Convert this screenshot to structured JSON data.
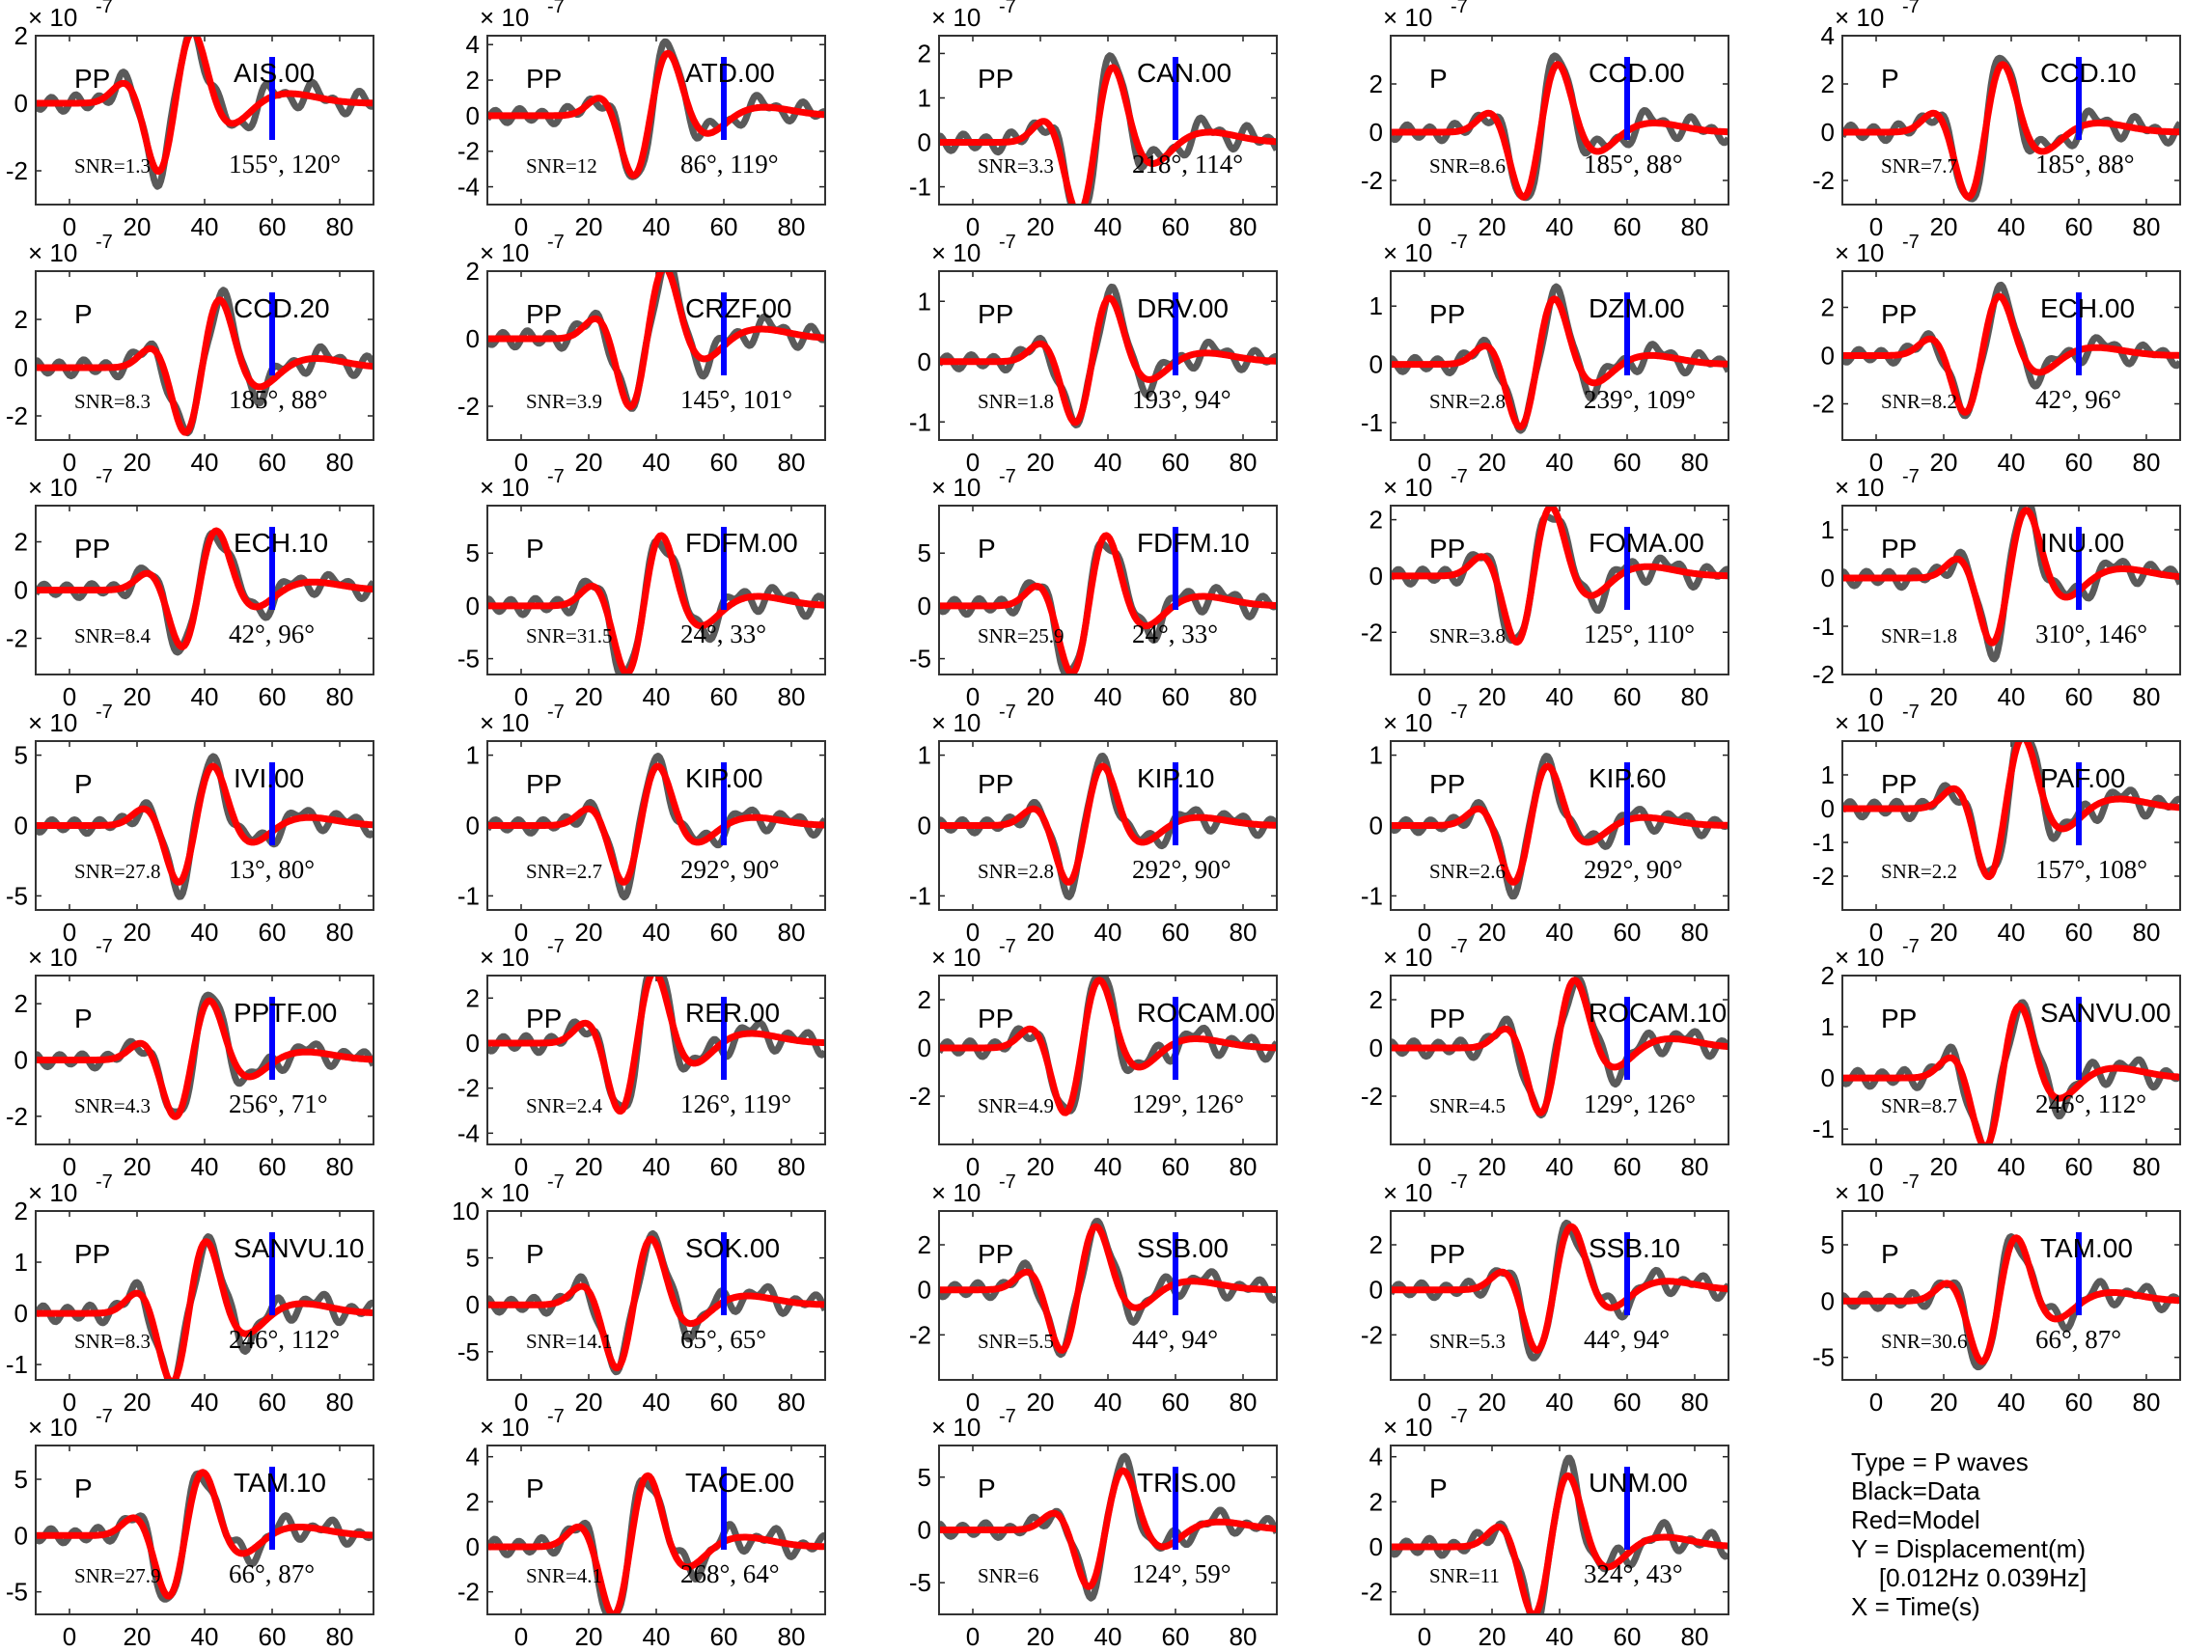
{
  "panels": [
    {
      "station": "AIS.00",
      "phase": "PP",
      "snr": "SNR=1.3",
      "angles": "155°, 120°",
      "ymin": -3,
      "ymax": 2,
      "yticks": [
        -2,
        0,
        2
      ]
    },
    {
      "station": "ATD.00",
      "phase": "PP",
      "snr": "SNR=12",
      "angles": "86°, 119°",
      "ymin": -5,
      "ymax": 4.5,
      "yticks": [
        -4,
        -2,
        0,
        2,
        4
      ]
    },
    {
      "station": "CAN.00",
      "phase": "PP",
      "snr": "SNR=3.3",
      "angles": "218°, 114°",
      "ymin": -1.4,
      "ymax": 2.4,
      "yticks": [
        -1,
        0,
        1,
        2
      ]
    },
    {
      "station": "CCD.00",
      "phase": "P",
      "snr": "SNR=8.6",
      "angles": "185°, 88°",
      "ymin": -3,
      "ymax": 4,
      "yticks": [
        -2,
        0,
        2
      ]
    },
    {
      "station": "CCD.10",
      "phase": "P",
      "snr": "SNR=7.7",
      "angles": "185°, 88°",
      "ymin": -3,
      "ymax": 4,
      "yticks": [
        -2,
        0,
        2,
        4
      ]
    },
    {
      "station": "CCD.20",
      "phase": "P",
      "snr": "SNR=8.3",
      "angles": "185°, 88°",
      "ymin": -3,
      "ymax": 4,
      "yticks": [
        -2,
        0,
        2
      ]
    },
    {
      "station": "CRZF.00",
      "phase": "PP",
      "snr": "SNR=3.9",
      "angles": "145°, 101°",
      "ymin": -3,
      "ymax": 2,
      "yticks": [
        -2,
        0,
        2
      ]
    },
    {
      "station": "DRV.00",
      "phase": "PP",
      "snr": "SNR=1.8",
      "angles": "193°, 94°",
      "ymin": -1.3,
      "ymax": 1.5,
      "yticks": [
        -1,
        0,
        1
      ]
    },
    {
      "station": "DZM.00",
      "phase": "PP",
      "snr": "SNR=2.8",
      "angles": "239°, 109°",
      "ymin": -1.3,
      "ymax": 1.6,
      "yticks": [
        -1,
        0,
        1
      ]
    },
    {
      "station": "ECH.00",
      "phase": "PP",
      "snr": "SNR=8.2",
      "angles": "42°, 96°",
      "ymin": -3.5,
      "ymax": 3.5,
      "yticks": [
        -2,
        0,
        2
      ]
    },
    {
      "station": "ECH.10",
      "phase": "PP",
      "snr": "SNR=8.4",
      "angles": "42°, 96°",
      "ymin": -3.5,
      "ymax": 3.5,
      "yticks": [
        -2,
        0,
        2
      ]
    },
    {
      "station": "FDFM.00",
      "phase": "P",
      "snr": "SNR=31.5",
      "angles": "24°, 33°",
      "ymin": -6.5,
      "ymax": 9.5,
      "yticks": [
        -5,
        0,
        5
      ]
    },
    {
      "station": "FDFM.10",
      "phase": "P",
      "snr": "SNR=25.9",
      "angles": "24°, 33°",
      "ymin": -6.5,
      "ymax": 9.5,
      "yticks": [
        -5,
        0,
        5
      ]
    },
    {
      "station": "FOMA.00",
      "phase": "PP",
      "snr": "SNR=3.8",
      "angles": "125°, 110°",
      "ymin": -3.5,
      "ymax": 2.5,
      "yticks": [
        -2,
        0,
        2
      ]
    },
    {
      "station": "INU.00",
      "phase": "PP",
      "snr": "SNR=1.8",
      "angles": "310°, 146°",
      "ymin": -2,
      "ymax": 1.5,
      "yticks": [
        -2,
        -1,
        0,
        1
      ]
    },
    {
      "station": "IVI.00",
      "phase": "P",
      "snr": "SNR=27.8",
      "angles": "13°, 80°",
      "ymin": -6,
      "ymax": 6,
      "yticks": [
        -5,
        0,
        5
      ]
    },
    {
      "station": "KIP.00",
      "phase": "PP",
      "snr": "SNR=2.7",
      "angles": "292°, 90°",
      "ymin": -1.2,
      "ymax": 1.2,
      "yticks": [
        -1,
        0,
        1
      ]
    },
    {
      "station": "KIP.10",
      "phase": "PP",
      "snr": "SNR=2.8",
      "angles": "292°, 90°",
      "ymin": -1.2,
      "ymax": 1.2,
      "yticks": [
        -1,
        0,
        1
      ]
    },
    {
      "station": "KIP.60",
      "phase": "PP",
      "snr": "SNR=2.6",
      "angles": "292°, 90°",
      "ymin": -1.2,
      "ymax": 1.2,
      "yticks": [
        -1,
        0,
        1
      ]
    },
    {
      "station": "PAF.00",
      "phase": "PP",
      "snr": "SNR=2.2",
      "angles": "157°, 108°",
      "ymin": -3,
      "ymax": 2,
      "yticks": [
        -2,
        -1,
        0,
        1
      ]
    },
    {
      "station": "PPTF.00",
      "phase": "P",
      "snr": "SNR=4.3",
      "angles": "256°, 71°",
      "ymin": -3,
      "ymax": 3,
      "yticks": [
        -2,
        0,
        2
      ]
    },
    {
      "station": "RER.00",
      "phase": "PP",
      "snr": "SNR=2.4",
      "angles": "126°, 119°",
      "ymin": -4.5,
      "ymax": 3,
      "yticks": [
        -4,
        -2,
        0,
        2
      ]
    },
    {
      "station": "ROCAM.00",
      "phase": "PP",
      "snr": "SNR=4.9",
      "angles": "129°, 126°",
      "ymin": -4,
      "ymax": 3,
      "yticks": [
        -2,
        0,
        2
      ]
    },
    {
      "station": "ROCAM.10",
      "phase": "PP",
      "snr": "SNR=4.5",
      "angles": "129°, 126°",
      "ymin": -4,
      "ymax": 3,
      "yticks": [
        -2,
        0,
        2
      ]
    },
    {
      "station": "SANVU.00",
      "phase": "PP",
      "snr": "SNR=8.7",
      "angles": "246°, 112°",
      "ymin": -1.3,
      "ymax": 2,
      "yticks": [
        -1,
        0,
        1,
        2
      ]
    },
    {
      "station": "SANVU.10",
      "phase": "PP",
      "snr": "SNR=8.3",
      "angles": "246°, 112°",
      "ymin": -1.3,
      "ymax": 2,
      "yticks": [
        -1,
        0,
        1,
        2
      ]
    },
    {
      "station": "SOK.00",
      "phase": "P",
      "snr": "SNR=14.1",
      "angles": "65°, 65°",
      "ymin": -8,
      "ymax": 10,
      "yticks": [
        -5,
        0,
        5,
        10
      ]
    },
    {
      "station": "SSB.00",
      "phase": "PP",
      "snr": "SNR=5.5",
      "angles": "44°, 94°",
      "ymin": -4,
      "ymax": 3.5,
      "yticks": [
        -2,
        0,
        2
      ]
    },
    {
      "station": "SSB.10",
      "phase": "PP",
      "snr": "SNR=5.3",
      "angles": "44°, 94°",
      "ymin": -4,
      "ymax": 3.5,
      "yticks": [
        -2,
        0,
        2
      ]
    },
    {
      "station": "TAM.00",
      "phase": "P",
      "snr": "SNR=30.6",
      "angles": "66°, 87°",
      "ymin": -7,
      "ymax": 8,
      "yticks": [
        -5,
        0,
        5
      ]
    },
    {
      "station": "TAM.10",
      "phase": "P",
      "snr": "SNR=27.9",
      "angles": "66°, 87°",
      "ymin": -7,
      "ymax": 8,
      "yticks": [
        -5,
        0,
        5
      ]
    },
    {
      "station": "TAOE.00",
      "phase": "P",
      "snr": "SNR=4.1",
      "angles": "268°, 64°",
      "ymin": -3,
      "ymax": 4.5,
      "yticks": [
        -2,
        0,
        2,
        4
      ]
    },
    {
      "station": "TRIS.00",
      "phase": "P",
      "snr": "SNR=6",
      "angles": "124°, 59°",
      "ymin": -8,
      "ymax": 8,
      "yticks": [
        -5,
        0,
        5
      ]
    },
    {
      "station": "UNM.00",
      "phase": "P",
      "snr": "SNR=11",
      "angles": "324°, 43°",
      "ymin": -3,
      "ymax": 4.5,
      "yticks": [
        -2,
        0,
        2,
        4
      ]
    }
  ],
  "chart_data": {
    "type": "line",
    "xlim": [
      -10,
      90
    ],
    "xticks": [
      0,
      20,
      40,
      60,
      80
    ],
    "y_exponent_label": "× 10",
    "y_exponent_power": "-7",
    "marker_time": 60,
    "colors": {
      "data": "#5a5a5a",
      "model": "#ff0000",
      "marker": "#0000ff"
    }
  },
  "legend": {
    "lines": [
      "Type = P waves",
      "Black=Data",
      "Red=Model",
      "Y = Displacement(m)",
      "    [0.012Hz 0.039Hz]",
      "X = Time(s)"
    ]
  }
}
